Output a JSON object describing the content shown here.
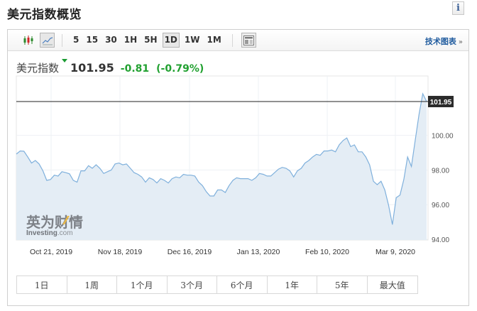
{
  "header": {
    "title": "美元指数概览",
    "info_icon": "info-icon"
  },
  "toolbar": {
    "chart_types": [
      {
        "name": "candlestick-chart-icon",
        "active": false
      },
      {
        "name": "line-chart-icon",
        "active": true
      }
    ],
    "timeframes": [
      {
        "label": "5",
        "active": false
      },
      {
        "label": "15",
        "active": false
      },
      {
        "label": "30",
        "active": false
      },
      {
        "label": "1H",
        "active": false
      },
      {
        "label": "5H",
        "active": false
      },
      {
        "label": "1D",
        "active": true
      },
      {
        "label": "1W",
        "active": false
      },
      {
        "label": "1M",
        "active": false
      }
    ],
    "layout_icon": "layout-icon",
    "tech_chart_link": "技术图表",
    "tech_chart_arrow": "»"
  },
  "quote": {
    "name": "美元指数",
    "direction": "down",
    "price": "101.95",
    "change": "-0.81",
    "change_pct": "(-0.79%)",
    "change_color": "#22a131"
  },
  "watermark": {
    "cn": "英为财情",
    "en": "Investing",
    "suffix": ".com"
  },
  "chart_data": {
    "type": "area",
    "title": "美元指数",
    "xlabel": "",
    "ylabel": "",
    "x_tick_labels": [
      "Oct 21, 2019",
      "Nov 18, 2019",
      "Dec 16, 2019",
      "Jan 13, 2020",
      "Feb 10, 2020",
      "Mar 9, 2020"
    ],
    "y_tick_labels": [
      "94.00",
      "96.00",
      "98.00",
      "100.00"
    ],
    "ylim": [
      94,
      103.2
    ],
    "current_value_label": "101.95",
    "current_value": 101.95,
    "grid": true,
    "line_color": "#7fb0dc",
    "fill_color": "#e4edf5",
    "series": [
      {
        "name": "美元指数",
        "values": [
          98.92,
          99.1,
          99.08,
          98.75,
          98.4,
          98.55,
          98.35,
          97.95,
          97.4,
          97.45,
          97.7,
          97.65,
          97.9,
          97.85,
          97.78,
          97.4,
          97.3,
          97.95,
          97.95,
          98.25,
          98.1,
          98.3,
          98.1,
          97.8,
          97.9,
          98.0,
          98.35,
          98.4,
          98.3,
          98.35,
          98.1,
          97.85,
          97.75,
          97.6,
          97.3,
          97.55,
          97.45,
          97.25,
          97.5,
          97.4,
          97.25,
          97.5,
          97.6,
          97.55,
          97.75,
          97.7,
          97.7,
          97.65,
          97.3,
          97.1,
          96.75,
          96.5,
          96.5,
          96.85,
          96.85,
          96.7,
          97.1,
          97.4,
          97.55,
          97.5,
          97.5,
          97.5,
          97.4,
          97.55,
          97.8,
          97.75,
          97.65,
          97.65,
          97.85,
          98.05,
          98.15,
          98.1,
          97.95,
          97.6,
          97.95,
          98.1,
          98.4,
          98.55,
          98.75,
          98.9,
          98.85,
          99.1,
          99.1,
          99.15,
          99.05,
          99.45,
          99.7,
          99.85,
          99.35,
          99.45,
          99.05,
          99.05,
          98.75,
          98.3,
          97.35,
          97.15,
          97.35,
          96.85,
          95.95,
          94.85,
          96.4,
          96.55,
          97.45,
          98.75,
          98.2,
          99.7,
          101.2,
          102.4,
          101.95
        ]
      }
    ]
  },
  "range_buttons": [
    "1日",
    "1周",
    "1个月",
    "3个月",
    "6个月",
    "1年",
    "5年",
    "最大值"
  ]
}
